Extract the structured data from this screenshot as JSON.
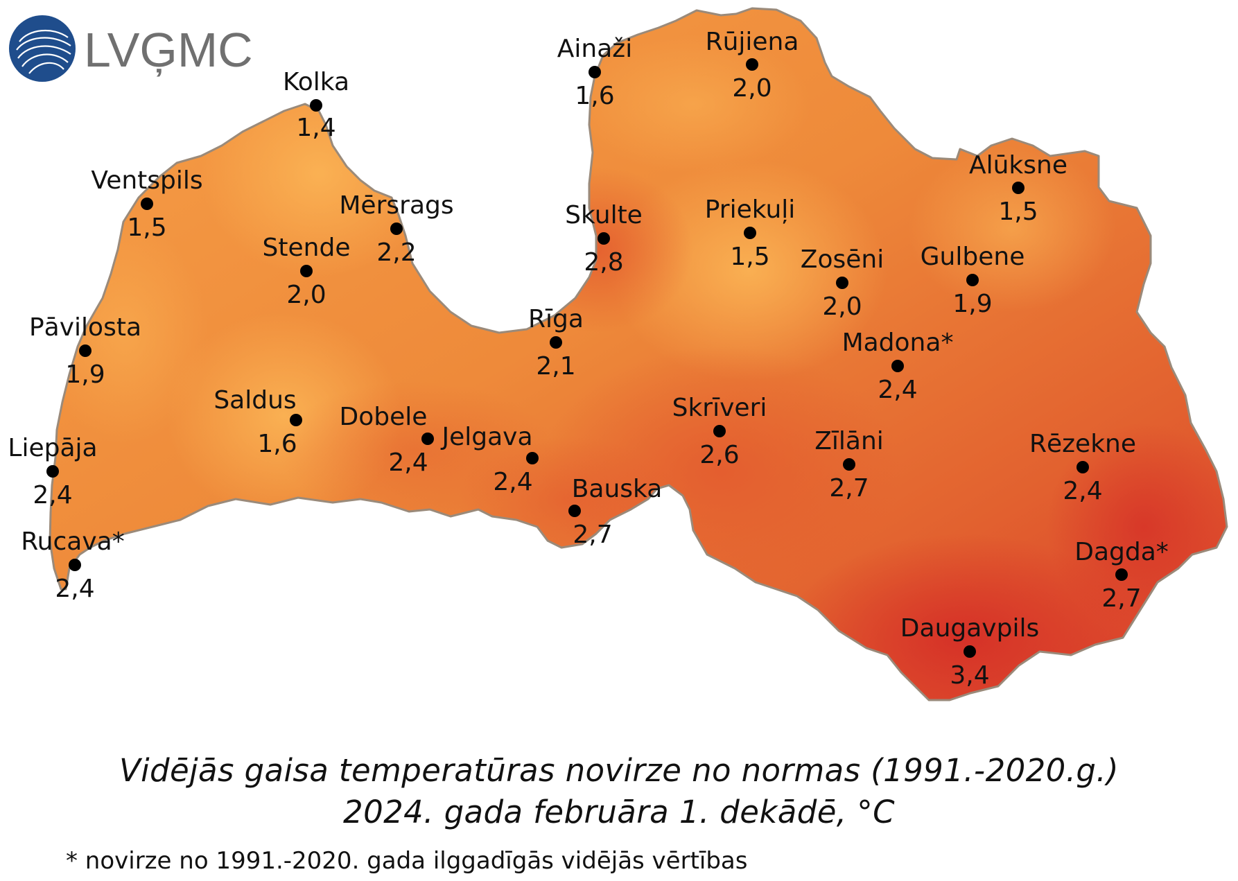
{
  "logo": {
    "text": "LVĢMC",
    "color": "#1f4d8c"
  },
  "caption": {
    "line1": "Vidējās gaisa temperatūras novirze no normas (1991.-2020.g.)",
    "line2": "2024. gada februāra 1. dekādē, °C"
  },
  "footnote": "* novirze no 1991.-2020. gada ilggadīgās vidējās vērtības",
  "colors": {
    "low": "#f8a64a",
    "mid": "#ea7a34",
    "high": "#d8352a",
    "border": "#9a8a7a",
    "marker": "#000000"
  },
  "stations": [
    {
      "name": "Kolka",
      "value": "1,4"
    },
    {
      "name": "Ventspils",
      "value": "1,5"
    },
    {
      "name": "Mērsrags",
      "value": "2,2"
    },
    {
      "name": "Stende",
      "value": "2,0"
    },
    {
      "name": "Pāvilosta",
      "value": "1,9"
    },
    {
      "name": "Saldus",
      "value": "1,6"
    },
    {
      "name": "Dobele",
      "value": "2,4"
    },
    {
      "name": "Jelgava",
      "value": "2,4"
    },
    {
      "name": "Liepāja",
      "value": "2,4"
    },
    {
      "name": "Rucava*",
      "value": "2,4"
    },
    {
      "name": "Bauska",
      "value": "2,7"
    },
    {
      "name": "Ainaži",
      "value": "1,6"
    },
    {
      "name": "Rūjiena",
      "value": "2,0"
    },
    {
      "name": "Skulte",
      "value": "2,8"
    },
    {
      "name": "Rīga",
      "value": "2,1"
    },
    {
      "name": "Priekuļi",
      "value": "1,5"
    },
    {
      "name": "Alūksne",
      "value": "1,5"
    },
    {
      "name": "Zosēni",
      "value": "2,0"
    },
    {
      "name": "Gulbene",
      "value": "1,9"
    },
    {
      "name": "Madona*",
      "value": "2,4"
    },
    {
      "name": "Skrīveri",
      "value": "2,6"
    },
    {
      "name": "Zīlāni",
      "value": "2,7"
    },
    {
      "name": "Rēzekne",
      "value": "2,4"
    },
    {
      "name": "Dagda*",
      "value": "2,7"
    },
    {
      "name": "Daugavpils",
      "value": "3,4"
    }
  ]
}
